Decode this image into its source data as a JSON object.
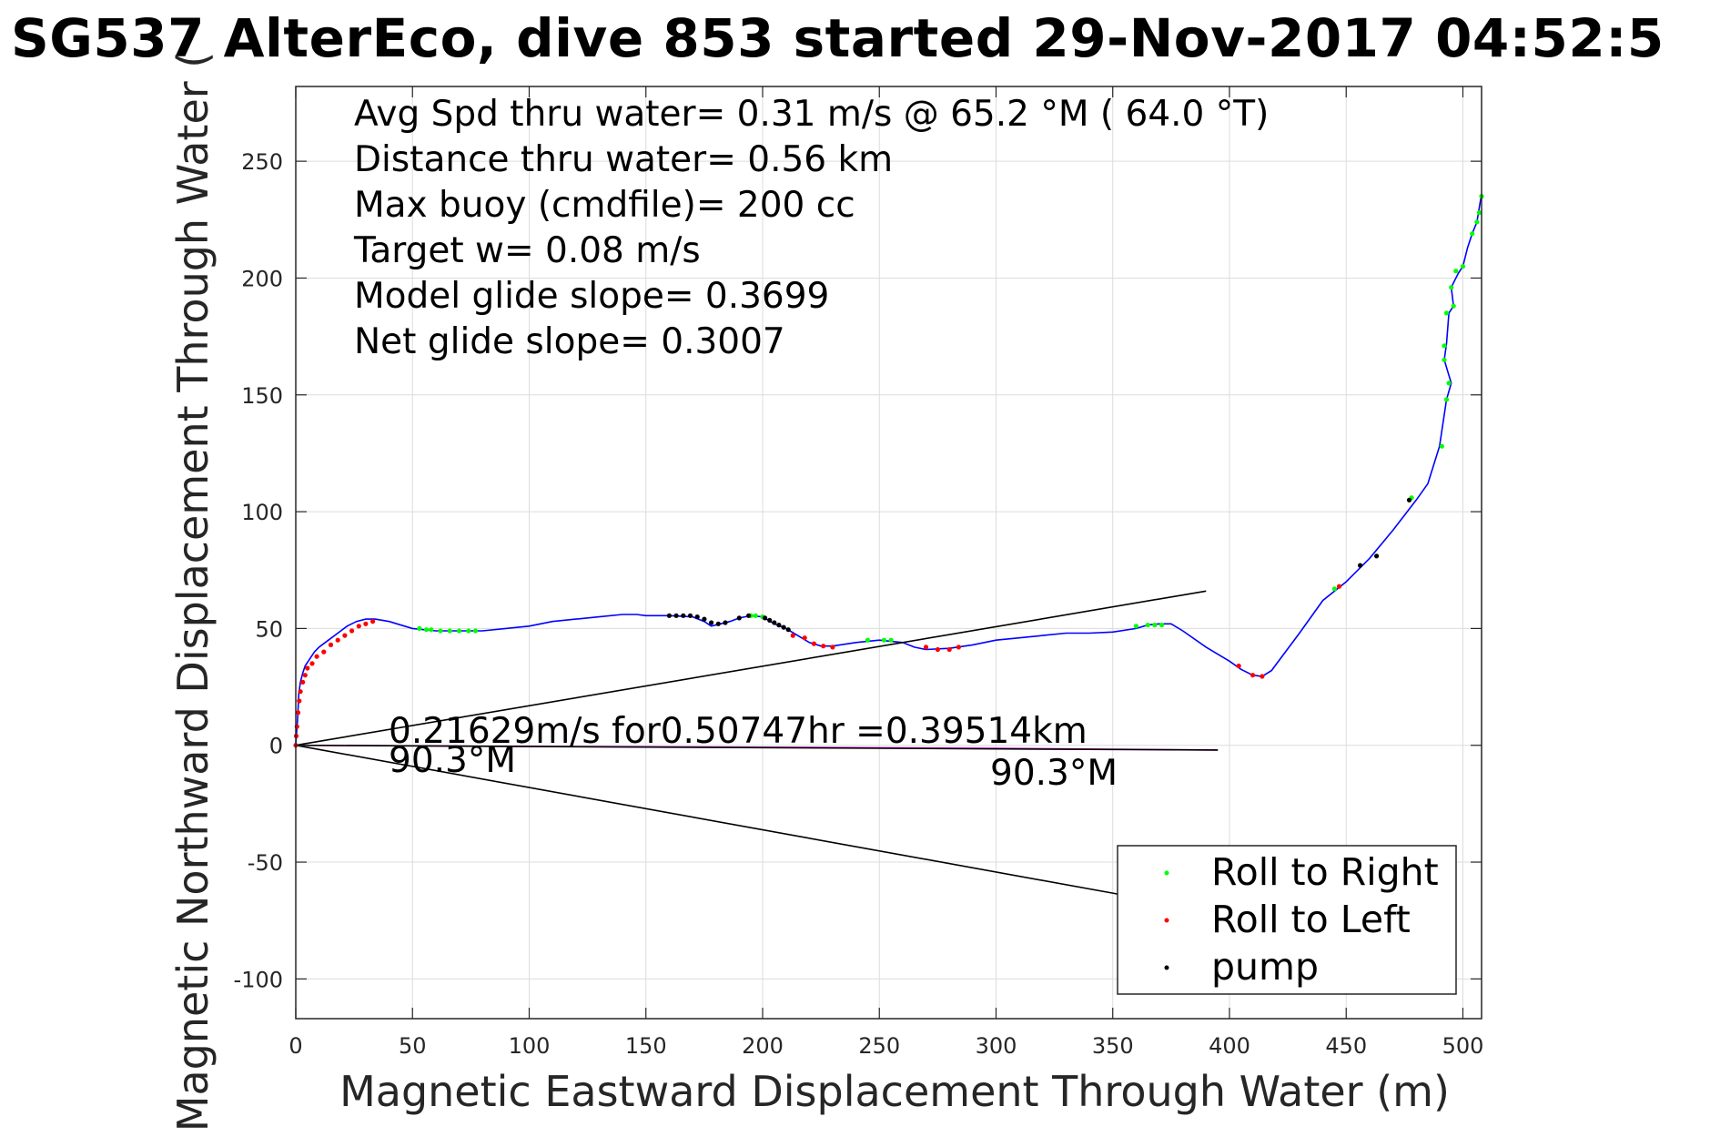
{
  "chart_data": {
    "type": "line",
    "title": "SG537 AlterEco, dive 853 started 29-Nov-2017 04:52:5",
    "xlabel": "Magnetic Eastward Displacement Through Water (m)",
    "ylabel": "Magnetic Northward Displacement Through Water (",
    "xlim": [
      0,
      508
    ],
    "ylim": [
      -117,
      282
    ],
    "xticks": [
      0,
      50,
      100,
      150,
      200,
      250,
      300,
      350,
      400,
      450,
      500
    ],
    "yticks": [
      -100,
      -50,
      0,
      50,
      100,
      150,
      200,
      250
    ],
    "grid": true,
    "legend_position": "bottom-right",
    "stats_text": [
      "Avg Spd thru water=  0.31 m/s @  65.2 °M ( 64.0 °T)",
      "Distance thru water=  0.56 km",
      "Max buoy (cmdfile)= 200 cc",
      "Target w= 0.08 m/s",
      "Model glide slope= 0.3699",
      "Net glide slope= 0.3007"
    ],
    "annotations": {
      "current_text": "0.21629m/s for0.50747hr =0.39514km",
      "heading_left": "90.3°M",
      "heading_right": "90.3°M"
    },
    "series": [
      {
        "style": "line",
        "color": "#0000ff",
        "x": [
          0,
          0.3,
          0.7,
          1,
          1.3,
          2,
          3,
          4,
          6,
          8,
          10,
          14,
          18,
          22,
          26,
          30,
          34,
          40,
          50,
          60,
          70,
          80,
          90,
          100,
          110,
          120,
          130,
          140,
          146,
          150,
          160,
          170,
          175,
          178,
          182,
          186,
          190,
          195,
          200,
          205,
          210,
          215,
          220,
          225,
          230,
          240,
          250,
          260,
          265,
          270,
          280,
          290,
          300,
          310,
          320,
          330,
          340,
          350,
          360,
          365,
          370,
          375,
          380,
          390,
          400,
          405,
          410,
          414,
          418,
          430,
          440,
          450,
          460,
          470,
          480,
          485,
          490,
          493,
          495,
          492,
          493,
          494,
          496,
          495,
          498,
          500,
          502,
          504,
          506,
          507,
          508
        ],
        "y": [
          0,
          5,
          10,
          16,
          22,
          27,
          31,
          34,
          37,
          40,
          42,
          45,
          48,
          51,
          53,
          54,
          54,
          53,
          50,
          49,
          49,
          49,
          50,
          51,
          53,
          54,
          55,
          56,
          56,
          55.5,
          55.5,
          55,
          53,
          51,
          52,
          53,
          54.5,
          55.5,
          55,
          52,
          50,
          47,
          44,
          42.5,
          42.5,
          44,
          45,
          44,
          42,
          41,
          41.5,
          43,
          45,
          46,
          47,
          48,
          48,
          48.5,
          50,
          51.5,
          52,
          52,
          49,
          42,
          36,
          32.5,
          30,
          29.5,
          32,
          48,
          62,
          70,
          80,
          92,
          105,
          112,
          128,
          148,
          155,
          165,
          172,
          185,
          188,
          196,
          202,
          205,
          213,
          219,
          224,
          230,
          236
        ]
      },
      {
        "style": "line",
        "color": "#ff00ff",
        "x": [
          0,
          100,
          200,
          300,
          395
        ],
        "y": [
          0,
          -0.5,
          -0.8,
          -1.3,
          -2
        ]
      },
      {
        "style": "line",
        "color": "#000000",
        "x": [
          0,
          390
        ],
        "y": [
          0,
          66
        ]
      },
      {
        "style": "line",
        "color": "#000000",
        "x": [
          0,
          395
        ],
        "y": [
          0,
          -2
        ]
      },
      {
        "style": "line",
        "color": "#000000",
        "x": [
          0,
          354
        ],
        "y": [
          0,
          -64
        ]
      },
      {
        "name": "Roll to Right",
        "style": "marker",
        "color": "#00ff00",
        "x": [
          53,
          56,
          58,
          62,
          66,
          70,
          74,
          77,
          195,
          197,
          200,
          245,
          252,
          255,
          360,
          365,
          368,
          371,
          445,
          478,
          491,
          493,
          496,
          493,
          492,
          492,
          494,
          495,
          497,
          500,
          504,
          506,
          507,
          508
        ],
        "y": [
          50,
          49.5,
          49.5,
          49,
          49,
          49,
          49,
          49,
          55.5,
          55.5,
          55,
          45,
          45,
          45,
          51,
          51.5,
          51.5,
          51.5,
          67,
          106,
          128,
          148,
          188,
          185,
          171,
          165,
          155,
          196,
          203,
          205,
          219,
          224,
          228,
          235
        ]
      },
      {
        "name": "Roll to Left",
        "style": "marker",
        "color": "#ff0000",
        "x": [
          0,
          0.2,
          0.5,
          1,
          1.5,
          2,
          3,
          4,
          5,
          7,
          9,
          12,
          15,
          18,
          21,
          24,
          27,
          30,
          33,
          213,
          218,
          222,
          226,
          230,
          270,
          275,
          280,
          284,
          404,
          410,
          414,
          447
        ],
        "y": [
          0,
          4,
          8,
          14,
          19,
          23,
          27,
          30,
          33,
          35,
          38,
          40,
          43,
          45,
          47,
          49,
          51,
          52,
          53,
          47,
          46,
          43.5,
          42.5,
          42,
          42,
          41,
          41,
          42,
          34,
          30,
          29.5,
          68
        ]
      },
      {
        "name": "pump",
        "style": "marker",
        "color": "#000000",
        "x": [
          160,
          163,
          166,
          169,
          172,
          175,
          178,
          181,
          184,
          190,
          194,
          201,
          203,
          205,
          207,
          209,
          211,
          456,
          463,
          477
        ],
        "y": [
          55.5,
          55.5,
          55.5,
          55.5,
          55,
          54,
          52.5,
          52,
          52.5,
          54.5,
          55.5,
          54.5,
          53.5,
          52.5,
          51.5,
          50.5,
          49.5,
          77,
          81,
          105
        ]
      }
    ]
  }
}
